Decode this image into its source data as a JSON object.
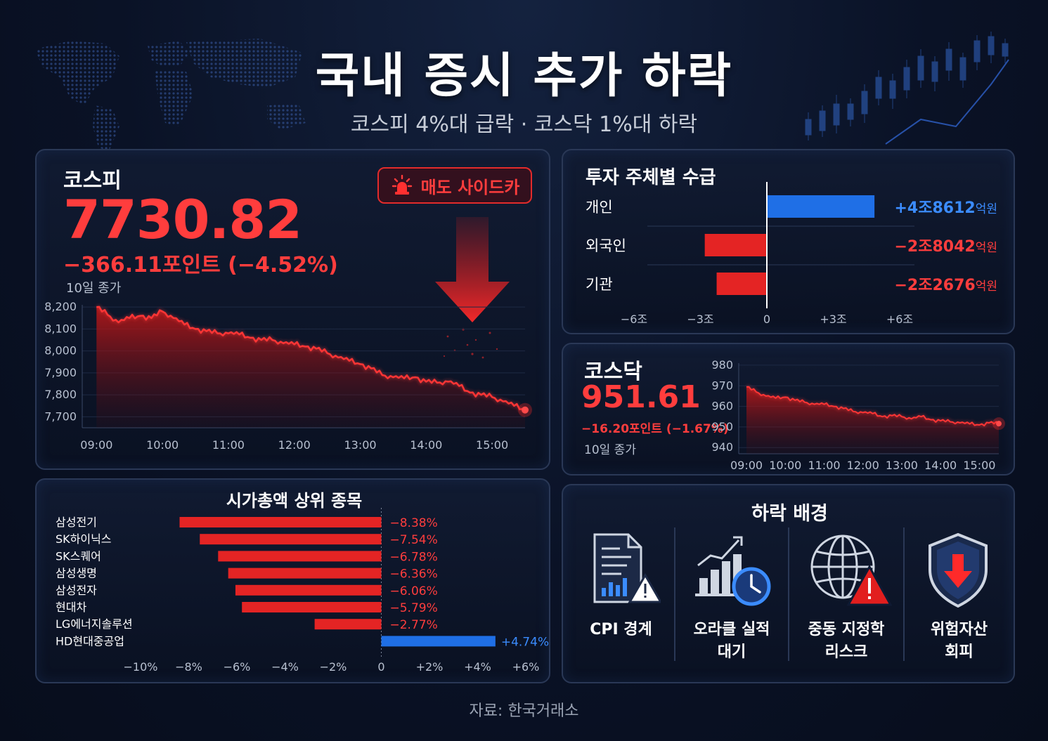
{
  "header": {
    "title": "국내 증시 추가 하락",
    "subtitle": "코스피 4%대 급락 · 코스닥 1%대 하락"
  },
  "kospi": {
    "name": "코스피",
    "value": "7730.82",
    "change": "−366.11포인트 (−4.52%)",
    "note": "10일 종가",
    "badge": "매도 사이드카",
    "colors": {
      "line": "#ff3535",
      "fill": "#b01818"
    }
  },
  "investors": {
    "title": "투자 주체별 수급",
    "unit_suffix": "억원",
    "items": [
      {
        "label": "개인",
        "value_text": "+4조8612",
        "suffix": "억원",
        "value": 4.8612,
        "color": "#1f6fe6"
      },
      {
        "label": "외국인",
        "value_text": "−2조8042",
        "suffix": "억원",
        "value": -2.8042,
        "color": "#e42424"
      },
      {
        "label": "기관",
        "value_text": "−2조2676",
        "suffix": "억원",
        "value": -2.2676,
        "color": "#e42424"
      }
    ],
    "ticks": [
      "−6조",
      "−3조",
      "0",
      "+3조",
      "+6조"
    ]
  },
  "kosdaq": {
    "name": "코스닥",
    "value": "951.61",
    "change": "−16.20포인트 (−1.67%)",
    "note": "10일 종가"
  },
  "top_stocks": {
    "title": "시가총액 상위 종목",
    "ticks": [
      "−10%",
      "−8%",
      "−6%",
      "−4%",
      "−2%",
      "0",
      "+2%",
      "+4%",
      "+6%"
    ],
    "items": [
      {
        "name": "삼성전기",
        "label": "−8.38%",
        "value": -8.38
      },
      {
        "name": "SK하이닉스",
        "label": "−7.54%",
        "value": -7.54
      },
      {
        "name": "SK스퀘어",
        "label": "−6.78%",
        "value": -6.78
      },
      {
        "name": "삼성생명",
        "label": "−6.36%",
        "value": -6.36
      },
      {
        "name": "삼성전자",
        "label": "−6.06%",
        "value": -6.06
      },
      {
        "name": "현대차",
        "label": "−5.79%",
        "value": -5.79
      },
      {
        "name": "LG에너지솔루션",
        "label": "−2.77%",
        "value": -2.77
      },
      {
        "name": "HD현대중공업",
        "label": "+4.74%",
        "value": 4.74
      }
    ]
  },
  "reasons": {
    "title": "하락 배경",
    "items": [
      {
        "icon": "document-warning-icon",
        "label_lines": [
          "CPI 경계"
        ]
      },
      {
        "icon": "growth-clock-icon",
        "label_lines": [
          "오라클 실적",
          "대기"
        ]
      },
      {
        "icon": "globe-warning-icon",
        "label_lines": [
          "중동 지정학",
          "리스크"
        ]
      },
      {
        "icon": "shield-down-icon",
        "label_lines": [
          "위험자산",
          "회피"
        ]
      }
    ]
  },
  "source": "자료: 한국거래소",
  "chart_data": [
    {
      "type": "area",
      "title": "코스피",
      "x_ticks": [
        "09:00",
        "10:00",
        "11:00",
        "12:00",
        "13:00",
        "14:00",
        "15:00"
      ],
      "y_ticks": [
        "8,200",
        "8,100",
        "8,000",
        "7,900",
        "7,800",
        "7,700"
      ],
      "ylim": [
        7650,
        8210
      ],
      "x": [
        "09:00",
        "09:10",
        "09:20",
        "09:30",
        "09:40",
        "09:50",
        "10:00",
        "10:10",
        "10:20",
        "10:30",
        "10:40",
        "10:50",
        "11:00",
        "11:10",
        "11:20",
        "11:30",
        "11:40",
        "11:50",
        "12:00",
        "12:10",
        "12:20",
        "12:30",
        "12:40",
        "12:50",
        "13:00",
        "13:10",
        "13:20",
        "13:30",
        "13:40",
        "13:50",
        "14:00",
        "14:10",
        "14:20",
        "14:30",
        "14:40",
        "14:50",
        "15:00",
        "15:10",
        "15:20",
        "15:30"
      ],
      "values": [
        8200,
        8165,
        8130,
        8150,
        8160,
        8150,
        8180,
        8150,
        8120,
        8100,
        8090,
        8080,
        8080,
        8075,
        8060,
        8050,
        8050,
        8035,
        8030,
        8020,
        8010,
        7990,
        7970,
        7955,
        7940,
        7920,
        7890,
        7880,
        7875,
        7880,
        7860,
        7855,
        7860,
        7840,
        7810,
        7800,
        7790,
        7770,
        7750,
        7730.82
      ]
    },
    {
      "type": "area",
      "title": "코스닥",
      "x_ticks": [
        "09:00",
        "10:00",
        "11:00",
        "12:00",
        "13:00",
        "14:00",
        "15:00"
      ],
      "y_ticks": [
        "980",
        "970",
        "960",
        "950",
        "940"
      ],
      "ylim": [
        937,
        981
      ],
      "x": [
        "09:00",
        "09:15",
        "09:30",
        "09:45",
        "10:00",
        "10:15",
        "10:30",
        "10:45",
        "11:00",
        "11:15",
        "11:30",
        "11:45",
        "12:00",
        "12:15",
        "12:30",
        "12:45",
        "13:00",
        "13:15",
        "13:30",
        "13:45",
        "14:00",
        "14:15",
        "14:30",
        "14:45",
        "15:00",
        "15:15",
        "15:30"
      ],
      "values": [
        969.5,
        967,
        965,
        964,
        964.5,
        963,
        962,
        961,
        961,
        960,
        959,
        957.5,
        957,
        956.5,
        955,
        955.5,
        955,
        954,
        955,
        953.5,
        953,
        952.5,
        952,
        951.5,
        951,
        952,
        951.61
      ]
    },
    {
      "type": "bar",
      "title": "투자 주체별 수급",
      "categories": [
        "개인",
        "외국인",
        "기관"
      ],
      "values": [
        4.8612,
        -2.8042,
        -2.2676
      ],
      "xlim": [
        -6,
        6
      ]
    },
    {
      "type": "bar",
      "title": "시가총액 상위 종목",
      "categories": [
        "삼성전기",
        "SK하이닉스",
        "SK스퀘어",
        "삼성생명",
        "삼성전자",
        "현대차",
        "LG에너지솔루션",
        "HD현대중공업"
      ],
      "values": [
        -8.38,
        -7.54,
        -6.78,
        -6.36,
        -6.06,
        -5.79,
        -2.77,
        4.74
      ],
      "xlim": [
        -10,
        6
      ]
    }
  ]
}
